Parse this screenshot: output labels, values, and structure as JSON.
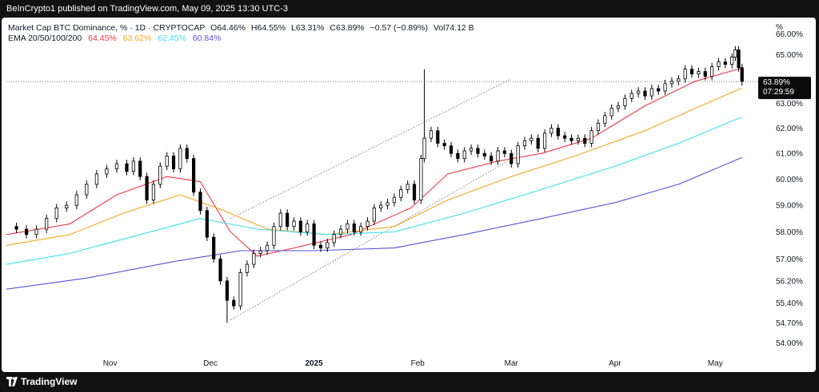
{
  "header": {
    "publisher_line": "BeInCrypto1 published on TradingView.com, May 09, 2025 13:30 UTC-3"
  },
  "legend": {
    "title": "Market Cap BTC Dominance, % · 1D · CRYPTOCAP",
    "o_label": "O",
    "o_value": "64.46%",
    "h_label": "H",
    "h_value": "64.55%",
    "l_label": "L",
    "l_value": "63.31%",
    "c_label": "C",
    "c_value": "63.89%",
    "change": "−0.57 (−0.89%)",
    "vol_label": "Vol",
    "vol_value": "74.12 B",
    "ema_label": "EMA 20/50/100/200",
    "ema20": "64.45%",
    "ema50": "63.62%",
    "ema100": "62.45%",
    "ema200": "60.84%"
  },
  "axis": {
    "unit_label": "%",
    "top_partial": "66.00%",
    "price_tag": "63.89%",
    "countdown": "07:29:59"
  },
  "footer": {
    "brand": "TradingView"
  },
  "colors": {
    "up": "#ffffff",
    "down": "#000000",
    "ema20": "#f23645",
    "ema50": "#f5a623",
    "ema100": "#3fe0f0",
    "ema200": "#5b4fd9"
  },
  "chart_data": {
    "type": "line",
    "title": "Market Cap BTC Dominance, % · 1D · CRYPTOCAP",
    "xlabel": "",
    "ylabel": "%",
    "y_scale": "log",
    "ylim": [
      53.6,
      66.3
    ],
    "y_ticks": [
      {
        "value": 54.0,
        "label": "54.00%"
      },
      {
        "value": 54.7,
        "label": "54.70%"
      },
      {
        "value": 55.4,
        "label": "55.40%"
      },
      {
        "value": 56.2,
        "label": "56.20%"
      },
      {
        "value": 57.0,
        "label": "57.00%"
      },
      {
        "value": 58.0,
        "label": "58.00%"
      },
      {
        "value": 59.0,
        "label": "59.00%"
      },
      {
        "value": 60.0,
        "label": "60.00%"
      },
      {
        "value": 61.0,
        "label": "61.00%"
      },
      {
        "value": 62.0,
        "label": "62.00%"
      },
      {
        "value": 63.0,
        "label": "63.00%"
      },
      {
        "value": 65.0,
        "label": "65.00%"
      }
    ],
    "x_ticks": [
      {
        "label": "Nov",
        "date": "2024-11-01",
        "bold": false
      },
      {
        "label": "Dec",
        "date": "2024-12-01",
        "bold": false
      },
      {
        "label": "2025",
        "date": "2025-01-01",
        "bold": true
      },
      {
        "label": "Feb",
        "date": "2025-02-01",
        "bold": false
      },
      {
        "label": "Mar",
        "date": "2025-03-01",
        "bold": false
      },
      {
        "label": "Apr",
        "date": "2025-04-01",
        "bold": false
      },
      {
        "label": "May",
        "date": "2025-05-01",
        "bold": false
      }
    ],
    "xlim": [
      "2024-10-01",
      "2025-05-16"
    ],
    "last_price": 63.89,
    "close_series": {
      "name": "Market Cap BTC Dominance",
      "points": [
        [
          "2024-10-01",
          58.2
        ],
        [
          "2024-10-04",
          58.1
        ],
        [
          "2024-10-07",
          57.9
        ],
        [
          "2024-10-10",
          58.1
        ],
        [
          "2024-10-13",
          58.5
        ],
        [
          "2024-10-16",
          58.9
        ],
        [
          "2024-10-19",
          59.0
        ],
        [
          "2024-10-22",
          59.4
        ],
        [
          "2024-10-25",
          59.8
        ],
        [
          "2024-10-28",
          60.2
        ],
        [
          "2024-10-31",
          60.4
        ],
        [
          "2024-11-03",
          60.6
        ],
        [
          "2024-11-06",
          60.3
        ],
        [
          "2024-11-08",
          60.7
        ],
        [
          "2024-11-10",
          60.1
        ],
        [
          "2024-11-12",
          59.2
        ],
        [
          "2024-11-14",
          59.8
        ],
        [
          "2024-11-16",
          60.5
        ],
        [
          "2024-11-18",
          60.9
        ],
        [
          "2024-11-20",
          60.4
        ],
        [
          "2024-11-22",
          61.2
        ],
        [
          "2024-11-24",
          60.8
        ],
        [
          "2024-11-26",
          59.5
        ],
        [
          "2024-11-28",
          58.8
        ],
        [
          "2024-11-30",
          57.8
        ],
        [
          "2024-12-02",
          57.0
        ],
        [
          "2024-12-04",
          56.2
        ],
        [
          "2024-12-06",
          55.5
        ],
        [
          "2024-12-08",
          55.3
        ],
        [
          "2024-12-10",
          56.5
        ],
        [
          "2024-12-12",
          56.8
        ],
        [
          "2024-12-14",
          57.2
        ],
        [
          "2024-12-16",
          57.3
        ],
        [
          "2024-12-18",
          57.5
        ],
        [
          "2024-12-20",
          58.2
        ],
        [
          "2024-12-22",
          58.7
        ],
        [
          "2024-12-24",
          58.2
        ],
        [
          "2024-12-26",
          58.4
        ],
        [
          "2024-12-28",
          58.0
        ],
        [
          "2024-12-30",
          58.3
        ],
        [
          "2025-01-01",
          57.5
        ],
        [
          "2025-01-03",
          57.4
        ],
        [
          "2025-01-05",
          57.6
        ],
        [
          "2025-01-07",
          57.9
        ],
        [
          "2025-01-09",
          58.1
        ],
        [
          "2025-01-11",
          58.3
        ],
        [
          "2025-01-13",
          58.0
        ],
        [
          "2025-01-15",
          58.2
        ],
        [
          "2025-01-17",
          58.4
        ],
        [
          "2025-01-19",
          58.9
        ],
        [
          "2025-01-21",
          59.0
        ],
        [
          "2025-01-23",
          59.1
        ],
        [
          "2025-01-25",
          59.3
        ],
        [
          "2025-01-27",
          59.6
        ],
        [
          "2025-01-29",
          59.8
        ],
        [
          "2025-01-31",
          59.2
        ],
        [
          "2025-02-02",
          60.8
        ],
        [
          "2025-02-03",
          61.6
        ],
        [
          "2025-02-05",
          61.9
        ],
        [
          "2025-02-07",
          61.4
        ],
        [
          "2025-02-09",
          61.3
        ],
        [
          "2025-02-11",
          61.0
        ],
        [
          "2025-02-13",
          60.8
        ],
        [
          "2025-02-15",
          61.1
        ],
        [
          "2025-02-17",
          61.2
        ],
        [
          "2025-02-19",
          61.0
        ],
        [
          "2025-02-21",
          60.9
        ],
        [
          "2025-02-23",
          60.7
        ],
        [
          "2025-02-25",
          61.1
        ],
        [
          "2025-02-27",
          61.0
        ],
        [
          "2025-03-01",
          60.6
        ],
        [
          "2025-03-03",
          61.3
        ],
        [
          "2025-03-05",
          61.5
        ],
        [
          "2025-03-07",
          61.6
        ],
        [
          "2025-03-09",
          61.2
        ],
        [
          "2025-03-11",
          61.8
        ],
        [
          "2025-03-13",
          62.0
        ],
        [
          "2025-03-15",
          61.7
        ],
        [
          "2025-03-17",
          61.6
        ],
        [
          "2025-03-19",
          61.5
        ],
        [
          "2025-03-21",
          61.6
        ],
        [
          "2025-03-23",
          61.4
        ],
        [
          "2025-03-25",
          61.9
        ],
        [
          "2025-03-27",
          62.2
        ],
        [
          "2025-03-29",
          62.5
        ],
        [
          "2025-03-31",
          62.8
        ],
        [
          "2025-04-02",
          62.9
        ],
        [
          "2025-04-04",
          63.2
        ],
        [
          "2025-04-06",
          63.4
        ],
        [
          "2025-04-08",
          63.5
        ],
        [
          "2025-04-10",
          63.3
        ],
        [
          "2025-04-12",
          63.6
        ],
        [
          "2025-04-14",
          63.5
        ],
        [
          "2025-04-16",
          63.8
        ],
        [
          "2025-04-18",
          63.9
        ],
        [
          "2025-04-20",
          64.0
        ],
        [
          "2025-04-22",
          64.4
        ],
        [
          "2025-04-24",
          64.2
        ],
        [
          "2025-04-26",
          64.3
        ],
        [
          "2025-04-28",
          64.1
        ],
        [
          "2025-04-30",
          64.5
        ],
        [
          "2025-05-02",
          64.7
        ],
        [
          "2025-05-04",
          64.6
        ],
        [
          "2025-05-06",
          64.9
        ],
        [
          "2025-05-07",
          65.2
        ],
        [
          "2025-05-08",
          64.46
        ],
        [
          "2025-05-09",
          63.89
        ]
      ]
    },
    "extremes": [
      {
        "date": "2024-12-06",
        "low": 54.7
      },
      {
        "date": "2025-02-03",
        "high": 64.4
      }
    ],
    "series": [
      {
        "name": "EMA 20",
        "color": "#f23645",
        "points": [
          [
            "2024-10-01",
            57.9
          ],
          [
            "2024-10-20",
            58.3
          ],
          [
            "2024-11-03",
            59.4
          ],
          [
            "2024-11-18",
            60.1
          ],
          [
            "2024-11-28",
            59.9
          ],
          [
            "2024-12-07",
            58.0
          ],
          [
            "2024-12-15",
            57.1
          ],
          [
            "2024-12-26",
            57.4
          ],
          [
            "2025-01-12",
            57.9
          ],
          [
            "2025-01-30",
            58.9
          ],
          [
            "2025-02-10",
            60.2
          ],
          [
            "2025-02-25",
            60.7
          ],
          [
            "2025-03-10",
            61.0
          ],
          [
            "2025-03-25",
            61.6
          ],
          [
            "2025-04-10",
            62.9
          ],
          [
            "2025-04-25",
            63.9
          ],
          [
            "2025-05-09",
            64.45
          ]
        ]
      },
      {
        "name": "EMA 50",
        "color": "#f5a623",
        "points": [
          [
            "2024-10-01",
            57.5
          ],
          [
            "2024-10-20",
            57.9
          ],
          [
            "2024-11-05",
            58.7
          ],
          [
            "2024-11-22",
            59.4
          ],
          [
            "2024-12-05",
            58.8
          ],
          [
            "2024-12-18",
            58.1
          ],
          [
            "2025-01-05",
            57.9
          ],
          [
            "2025-01-25",
            58.2
          ],
          [
            "2025-02-10",
            59.2
          ],
          [
            "2025-03-01",
            60.1
          ],
          [
            "2025-03-20",
            60.9
          ],
          [
            "2025-04-10",
            61.9
          ],
          [
            "2025-04-25",
            62.8
          ],
          [
            "2025-05-09",
            63.62
          ]
        ]
      },
      {
        "name": "EMA 100",
        "color": "#3fe0f0",
        "points": [
          [
            "2024-10-01",
            56.8
          ],
          [
            "2024-10-20",
            57.2
          ],
          [
            "2024-11-10",
            57.9
          ],
          [
            "2024-11-28",
            58.5
          ],
          [
            "2024-12-15",
            58.1
          ],
          [
            "2025-01-05",
            57.9
          ],
          [
            "2025-01-25",
            58.0
          ],
          [
            "2025-02-15",
            58.7
          ],
          [
            "2025-03-10",
            59.6
          ],
          [
            "2025-04-01",
            60.5
          ],
          [
            "2025-04-20",
            61.4
          ],
          [
            "2025-05-09",
            62.45
          ]
        ]
      },
      {
        "name": "EMA 200",
        "color": "#5b4fd9",
        "points": [
          [
            "2024-10-01",
            55.9
          ],
          [
            "2024-10-25",
            56.3
          ],
          [
            "2024-11-20",
            56.9
          ],
          [
            "2024-12-10",
            57.3
          ],
          [
            "2025-01-01",
            57.3
          ],
          [
            "2025-01-25",
            57.4
          ],
          [
            "2025-02-15",
            57.9
          ],
          [
            "2025-03-10",
            58.5
          ],
          [
            "2025-04-01",
            59.1
          ],
          [
            "2025-04-20",
            59.8
          ],
          [
            "2025-05-09",
            60.84
          ]
        ]
      }
    ],
    "trend_channel": [
      {
        "from": [
          "2024-12-07",
          54.8
        ],
        "to": [
          "2025-02-28",
          60.7
        ]
      },
      {
        "from": [
          "2024-12-07",
          58.5
        ],
        "to": [
          "2025-03-01",
          64.0
        ]
      }
    ]
  }
}
